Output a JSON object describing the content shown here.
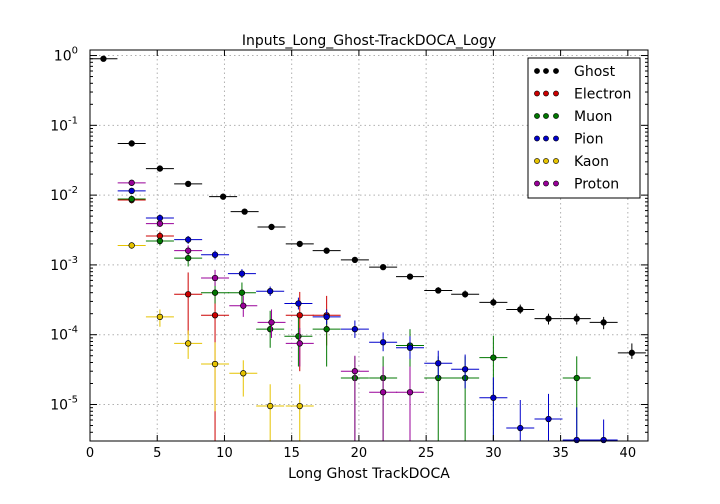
{
  "chart_data": {
    "type": "scatter",
    "title": "Inputs_Long_Ghost-TrackDOCA_Logy",
    "xlabel": "Long Ghost TrackDOCA",
    "ylabel": "",
    "xlim": [
      0,
      41.5
    ],
    "ylim": [
      3e-06,
      1.2
    ],
    "yscale": "log",
    "grid": true,
    "legend_position": "top-right",
    "x_ticks": [
      "0",
      "5",
      "10",
      "15",
      "20",
      "25",
      "30",
      "35",
      "40"
    ],
    "y_ticks": [
      "10^0",
      "10^-1",
      "10^-2",
      "10^-3",
      "10^-4",
      "10^-5"
    ],
    "series": [
      {
        "name": "Ghost",
        "color": "#000000",
        "points": [
          [
            1.0,
            0.9,
            0.05,
            0.04
          ],
          [
            3.1,
            0.055,
            0.005,
            0.004
          ],
          [
            5.2,
            0.024,
            0.002,
            0.002
          ],
          [
            7.3,
            0.0145,
            0.0012,
            0.001
          ],
          [
            9.9,
            0.0095,
            0.0008,
            0.0007
          ],
          [
            11.5,
            0.0058,
            0.0005,
            0.0004
          ],
          [
            13.5,
            0.0035,
            0.0003,
            0.0003
          ],
          [
            15.6,
            0.002,
            0.0002,
            0.0002
          ],
          [
            17.6,
            0.0016,
            0.00015,
            0.00013
          ],
          [
            19.7,
            0.00118,
            0.0001,
            0.0001
          ],
          [
            21.8,
            0.00093,
            8e-05,
            7e-05
          ],
          [
            23.8,
            0.00068,
            6e-05,
            5e-05
          ],
          [
            25.9,
            0.00043,
            5e-05,
            4e-05
          ],
          [
            27.9,
            0.00038,
            5e-05,
            4e-05
          ],
          [
            30.0,
            0.00029,
            4e-05,
            3e-05
          ],
          [
            32.0,
            0.00023,
            4e-05,
            3e-05
          ],
          [
            34.1,
            0.00017,
            3e-05,
            3e-05
          ],
          [
            36.2,
            0.00017,
            3e-05,
            3e-05
          ],
          [
            38.2,
            0.00015,
            3e-05,
            3e-05
          ],
          [
            40.3,
            5.5e-05,
            2e-05,
            1e-05
          ]
        ]
      },
      {
        "name": "Electron",
        "color": "#cc0000",
        "points": [
          [
            3.1,
            0.0085,
            0.001,
            0.0009
          ],
          [
            5.2,
            0.0026,
            0.0004,
            0.0004
          ],
          [
            7.3,
            0.00038,
            0.0004,
            0.00028
          ],
          [
            9.3,
            0.00019,
            0.00022,
            0.00019
          ],
          [
            15.6,
            0.00019,
            0.00022,
            0.00016
          ],
          [
            17.6,
            0.00019,
            0.00017,
            0.00012
          ]
        ]
      },
      {
        "name": "Muon",
        "color": "#007700",
        "points": [
          [
            3.1,
            0.0088,
            0.001,
            0.0009
          ],
          [
            5.2,
            0.0022,
            0.0003,
            0.0003
          ],
          [
            7.3,
            0.00125,
            0.0003,
            0.0003
          ],
          [
            9.3,
            0.0004,
            0.00016,
            0.00012
          ],
          [
            11.3,
            0.0004,
            0.00016,
            0.00012
          ],
          [
            13.4,
            0.00012,
            0.0001,
            5.5e-05
          ],
          [
            15.5,
            9.5e-05,
            8e-05,
            6e-05
          ],
          [
            17.6,
            0.00012,
            9e-05,
            8.5e-05
          ],
          [
            19.7,
            2.4e-05,
            2.5e-05,
            2.4e-05
          ],
          [
            21.8,
            2.4e-05,
            2.5e-05,
            2.4e-05
          ],
          [
            23.8,
            7e-05,
            5e-05,
            7e-05
          ],
          [
            25.9,
            2.4e-05,
            2.5e-05,
            2.4e-05
          ],
          [
            27.9,
            2.4e-05,
            2.5e-05,
            2.4e-05
          ],
          [
            30.0,
            4.7e-05,
            5e-05,
            4.7e-05
          ],
          [
            36.2,
            2.4e-05,
            2.5e-05,
            2.4e-05
          ]
        ]
      },
      {
        "name": "Pion",
        "color": "#0000cc",
        "points": [
          [
            3.1,
            0.0115,
            0.0012,
            0.001
          ],
          [
            5.2,
            0.0047,
            0.0006,
            0.0005
          ],
          [
            7.3,
            0.0023,
            0.0003,
            0.0003
          ],
          [
            9.3,
            0.0014,
            0.0002,
            0.0002
          ],
          [
            11.3,
            0.00075,
            0.00012,
            0.0001
          ],
          [
            13.4,
            0.00042,
            7e-05,
            6e-05
          ],
          [
            15.5,
            0.00028,
            6e-05,
            5e-05
          ],
          [
            17.6,
            0.00018,
            5e-05,
            4e-05
          ],
          [
            19.7,
            0.00012,
            4e-05,
            3e-05
          ],
          [
            21.8,
            7.8e-05,
            3e-05,
            2e-05
          ],
          [
            23.8,
            6.5e-05,
            3e-05,
            2e-05
          ],
          [
            25.9,
            3.9e-05,
            2e-05,
            1.5e-05
          ],
          [
            27.9,
            3.2e-05,
            2e-05,
            1.5e-05
          ],
          [
            30.0,
            1.25e-05,
            1.2e-05,
            1e-05
          ],
          [
            32.0,
            4.6e-06,
            7e-06,
            4.6e-06
          ],
          [
            34.1,
            6.2e-06,
            8e-06,
            6.2e-06
          ],
          [
            36.2,
            3.1e-06,
            6e-06,
            3.1e-06
          ],
          [
            38.2,
            3.1e-06,
            3e-06,
            3.1e-06
          ]
        ]
      },
      {
        "name": "Kaon",
        "color": "#e6c300",
        "points": [
          [
            3.1,
            0.0019,
            0.0002,
            0.0002
          ],
          [
            5.2,
            0.00018,
            5e-05,
            5e-05
          ],
          [
            7.3,
            7.5e-05,
            4e-05,
            3e-05
          ],
          [
            9.3,
            3.8e-05,
            4e-05,
            3e-05
          ],
          [
            11.4,
            2.8e-05,
            1.5e-05,
            1.5e-05
          ],
          [
            13.4,
            9.5e-06,
            1e-05,
            9.5e-06
          ],
          [
            15.6,
            9.5e-06,
            1e-05,
            9.5e-06
          ]
        ]
      },
      {
        "name": "Proton",
        "color": "#990099",
        "points": [
          [
            3.1,
            0.015,
            0.0015,
            0.0013
          ],
          [
            5.2,
            0.0039,
            0.0005,
            0.0004
          ],
          [
            7.3,
            0.0016,
            0.0003,
            0.0002
          ],
          [
            9.3,
            0.00065,
            0.0002,
            0.00015
          ],
          [
            11.4,
            0.00026,
            0.0001,
            8e-05
          ],
          [
            13.5,
            0.00015,
            8e-05,
            6e-05
          ],
          [
            15.6,
            7.5e-05,
            5e-05,
            4e-05
          ],
          [
            19.7,
            3e-05,
            2e-05,
            3e-05
          ],
          [
            21.8,
            1.5e-05,
            2e-05,
            1.5e-05
          ],
          [
            23.8,
            1.5e-05,
            2e-05,
            1.5e-05
          ]
        ]
      }
    ]
  }
}
